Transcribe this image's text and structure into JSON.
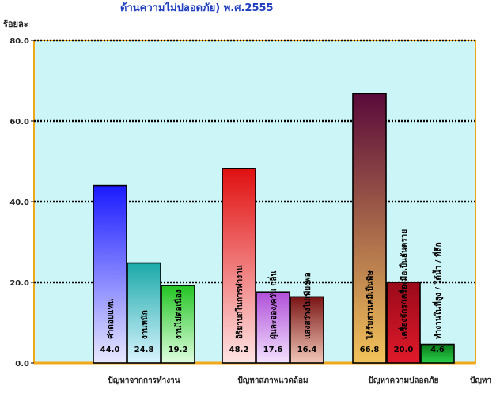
{
  "chart_data": {
    "type": "bar",
    "title": "ด้านความไม่ปลอดภัย) พ.ศ.2555",
    "ylabel": "ร้อยละ",
    "xlabel": "ปัญหา",
    "ylim": [
      0,
      80
    ],
    "yticks": [
      "0.0",
      "20.0",
      "40.0",
      "60.0",
      "80.0"
    ],
    "ytick_values": [
      0,
      20,
      40,
      60,
      80
    ],
    "grid": true,
    "plot_background": "#ccf5f7",
    "border_color": "#f2a81d",
    "groups": [
      {
        "name": "ปัญหาจากการทำงาน",
        "bars": [
          {
            "label": "ค่าตอบแทน",
            "value": 44.0,
            "value_text": "44.0",
            "colors": [
              "#1a1aff",
              "#e8e8ff"
            ]
          },
          {
            "label": "งานหนัก",
            "value": 24.8,
            "value_text": "24.8",
            "colors": [
              "#1aa9a9",
              "#d9f4ff"
            ]
          },
          {
            "label": "งานไม่ต่อเนื่อง",
            "value": 19.2,
            "value_text": "19.2",
            "colors": [
              "#23c423",
              "#e0ffe0"
            ]
          }
        ]
      },
      {
        "name": "ปัญหาสภาพแวดล้อม",
        "bars": [
          {
            "label": "อิริยาบถในการทำงาน",
            "value": 48.2,
            "value_text": "48.2",
            "colors": [
              "#e01010",
              "#ffe4e4"
            ]
          },
          {
            "label": "ฝุ่นละออง/ควัน กลิ่น",
            "value": 17.6,
            "value_text": "17.6",
            "colors": [
              "#b04fd8",
              "#f3e2ff"
            ]
          },
          {
            "label": "แสงสว่างไม่เพียงพอ",
            "value": 16.4,
            "value_text": "16.4",
            "colors": [
              "#7a1414",
              "#f2c8b8"
            ]
          }
        ]
      },
      {
        "name": "ปัญหาความปลอดภัย",
        "bars": [
          {
            "label": "ได้รับสารเคมีเป็นพิษ",
            "value": 66.8,
            "value_text": "66.8",
            "colors": [
              "#5a0a3a",
              "#f2c35a"
            ]
          },
          {
            "label": "เครื่องจักร/เครื่องมือเป็นอันตราย",
            "value": 20.0,
            "value_text": "20.0",
            "colors": [
              "#9a0a1a",
              "#e01a2a"
            ]
          },
          {
            "label": "ทำงานในที่สูง / ใต้น้ำ / ที่ลึก",
            "value": 4.6,
            "value_text": "4.6",
            "colors": [
              "#0a7a1a",
              "#2ad04a"
            ]
          }
        ]
      }
    ]
  }
}
